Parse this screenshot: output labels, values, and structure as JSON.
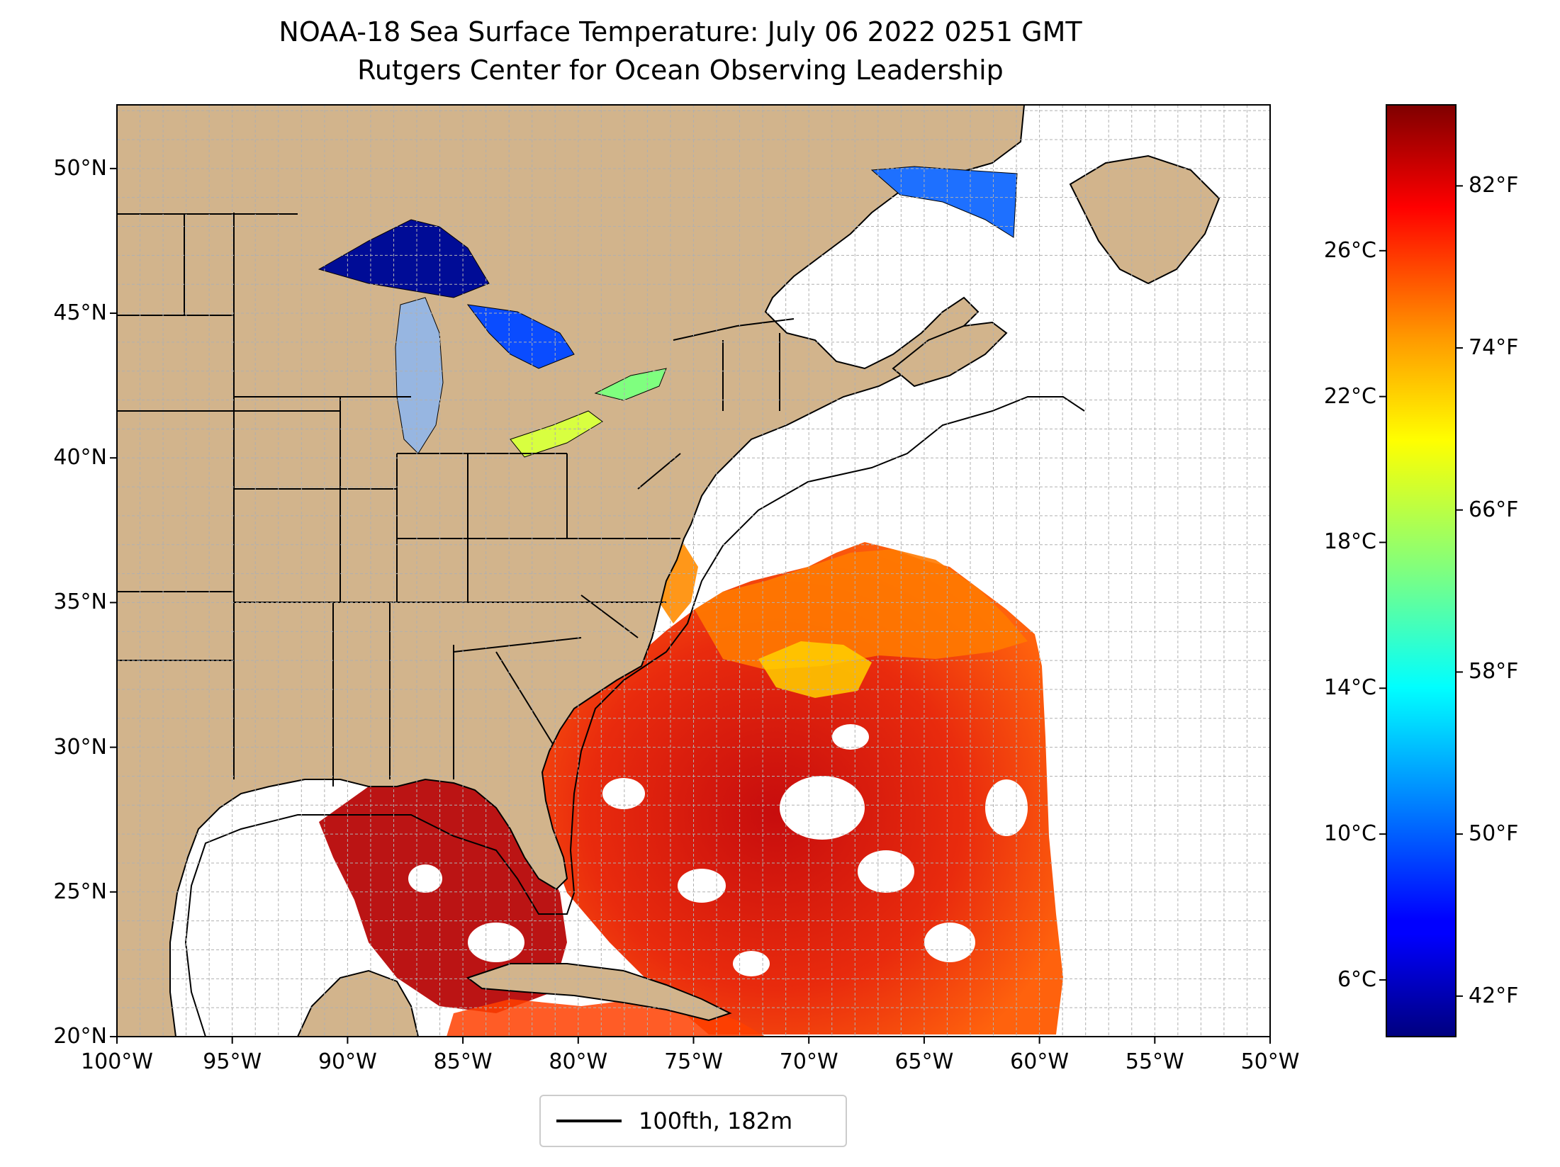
{
  "title": "NOAA-18 Sea Surface Temperature: July 06 2022 0251 GMT",
  "subtitle": "Rutgers Center for Ocean Observing Leadership",
  "map": {
    "extent": {
      "lon_min": -100,
      "lon_max": -50,
      "lat_min": 20,
      "lat_max": 52.2
    },
    "lat_ticks": [
      {
        "value": 50,
        "label": "50°N"
      },
      {
        "value": 45,
        "label": "45°N"
      },
      {
        "value": 40,
        "label": "40°N"
      },
      {
        "value": 35,
        "label": "35°N"
      },
      {
        "value": 30,
        "label": "30°N"
      },
      {
        "value": 25,
        "label": "25°N"
      },
      {
        "value": 20,
        "label": "20°N"
      }
    ],
    "lon_ticks": [
      {
        "value": -100,
        "label": "100°W"
      },
      {
        "value": -95,
        "label": "95°W"
      },
      {
        "value": -90,
        "label": "90°W"
      },
      {
        "value": -85,
        "label": "85°W"
      },
      {
        "value": -80,
        "label": "80°W"
      },
      {
        "value": -75,
        "label": "75°W"
      },
      {
        "value": -70,
        "label": "70°W"
      },
      {
        "value": -65,
        "label": "65°W"
      },
      {
        "value": -60,
        "label": "60°W"
      },
      {
        "value": -55,
        "label": "55°W"
      },
      {
        "value": -50,
        "label": "50°W"
      }
    ],
    "grid": true,
    "colors": {
      "land": "#d2b48c",
      "lakes": "#97b6e1",
      "ocean": "#ffffff",
      "grid": "#b0b0b0",
      "border": "#000000"
    }
  },
  "colorbar": {
    "cmap": "jet",
    "celsius_ticks": [
      {
        "value": 26,
        "label": "26°C"
      },
      {
        "value": 22,
        "label": "22°C"
      },
      {
        "value": 18,
        "label": "18°C"
      },
      {
        "value": 14,
        "label": "14°C"
      },
      {
        "value": 10,
        "label": "10°C"
      },
      {
        "value": 6,
        "label": "6°C"
      }
    ],
    "fahrenheit_ticks": [
      {
        "value": 82,
        "label": "82°F"
      },
      {
        "value": 74,
        "label": "74°F"
      },
      {
        "value": 66,
        "label": "66°F"
      },
      {
        "value": 58,
        "label": "58°F"
      },
      {
        "value": 50,
        "label": "50°F"
      },
      {
        "value": 42,
        "label": "42°F"
      }
    ],
    "range_f": [
      40,
      86
    ]
  },
  "legend": {
    "label": "100fth, 182m"
  }
}
